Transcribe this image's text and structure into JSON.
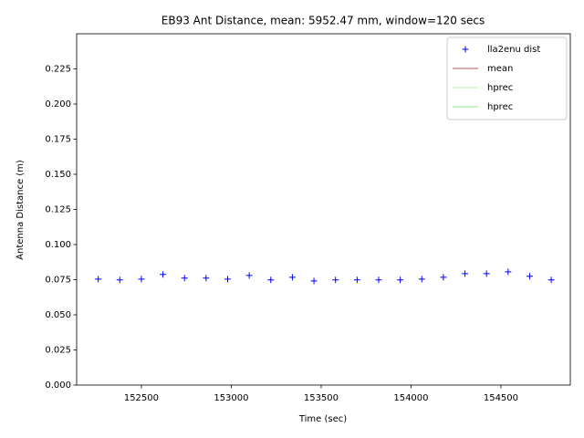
{
  "chart_data": {
    "type": "scatter",
    "title": "EB93 Ant Distance, mean: 5952.47 mm, window=120 secs",
    "xlabel": "Time (sec)",
    "ylabel": "Antenna Distance (m)",
    "xlim": [
      152140,
      154886
    ],
    "ylim": [
      0,
      0.25
    ],
    "xticks": [
      152500,
      153000,
      153500,
      154000,
      154500
    ],
    "yticks": [
      {
        "value": 0,
        "label": "0.000"
      },
      {
        "value": 0.025,
        "label": "0.025"
      },
      {
        "value": 0.05,
        "label": "0.050"
      },
      {
        "value": 0.075,
        "label": "0.075"
      },
      {
        "value": 0.1,
        "label": "0.100"
      },
      {
        "value": 0.125,
        "label": "0.125"
      },
      {
        "value": 0.15,
        "label": "0.150"
      },
      {
        "value": 0.175,
        "label": "0.175"
      },
      {
        "value": 0.2,
        "label": "0.200"
      },
      {
        "value": 0.225,
        "label": "0.225"
      }
    ],
    "legend": "upper right",
    "grid": false,
    "series": [
      {
        "name": "lla2enu dist",
        "color": "#0000ff",
        "marker": "+",
        "x": [
          152260,
          152380,
          152500,
          152620,
          152740,
          152860,
          152980,
          153100,
          153220,
          153340,
          153460,
          153580,
          153700,
          153820,
          153940,
          154060,
          154180,
          154300,
          154420,
          154540,
          154660,
          154780
        ],
        "values": [
          0.0754,
          0.0748,
          0.0754,
          0.0787,
          0.0761,
          0.0761,
          0.0754,
          0.078,
          0.0748,
          0.0767,
          0.0741,
          0.0748,
          0.0748,
          0.0748,
          0.0748,
          0.0754,
          0.0767,
          0.0793,
          0.0793,
          0.0806,
          0.0774,
          0.0748
        ]
      },
      {
        "name": "mean",
        "color": "#a02020",
        "marker": "line"
      },
      {
        "name": "hprec",
        "color": "#90ee90",
        "marker": "line"
      },
      {
        "name": "hprec",
        "color": "#66dd66",
        "marker": "line"
      }
    ]
  }
}
